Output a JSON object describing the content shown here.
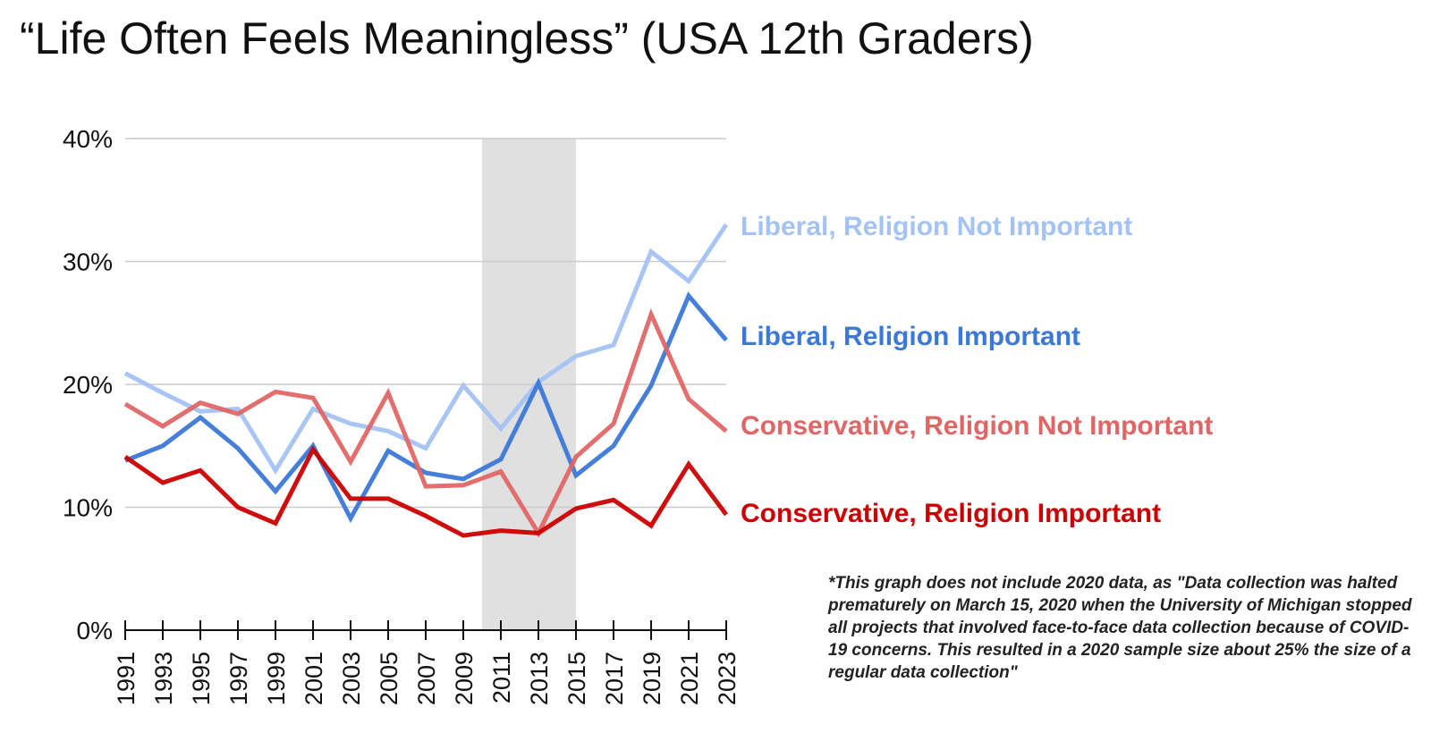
{
  "chart_data": {
    "type": "line",
    "title": "“Life Often Feels Meaningless” (USA 12th Graders)",
    "xlabel": "",
    "ylabel": "",
    "x": [
      "1991",
      "1993",
      "1995",
      "1997",
      "1999",
      "2001",
      "2003",
      "2005",
      "2007",
      "2009",
      "2011",
      "2013",
      "2015",
      "2017",
      "2019",
      "2021",
      "2023"
    ],
    "y_ticks": [
      "0%",
      "10%",
      "20%",
      "30%",
      "40%"
    ],
    "ylim": [
      0,
      40
    ],
    "grid": true,
    "legend": "right-end labels",
    "shaded_region": {
      "from": "2010",
      "to": "2015",
      "color": "#e0e0e0"
    },
    "series": [
      {
        "name": "Liberal, Religion Not Important",
        "color": "#a4c2f4",
        "values": [
          20.9,
          19.3,
          17.8,
          18.0,
          13.0,
          18.0,
          16.8,
          16.2,
          14.8,
          19.9,
          16.4,
          20.2,
          22.3,
          23.2,
          30.8,
          28.4,
          33.0
        ]
      },
      {
        "name": "Liberal, Religion Important",
        "color": "#3c78d8",
        "values": [
          13.8,
          15.0,
          17.3,
          14.8,
          11.3,
          15.0,
          9.1,
          14.6,
          12.8,
          12.3,
          13.9,
          20.1,
          12.6,
          15.0,
          19.9,
          27.2,
          23.6
        ]
      },
      {
        "name": "Conservative, Religion Not Important",
        "color": "#e06666",
        "values": [
          18.4,
          16.6,
          18.5,
          17.6,
          19.4,
          18.9,
          13.7,
          19.3,
          11.7,
          11.8,
          12.9,
          7.9,
          14.1,
          16.8,
          25.7,
          18.8,
          16.2
        ]
      },
      {
        "name": "Conservative, Religion Important",
        "color": "#cc0000",
        "values": [
          14.1,
          12.0,
          13.0,
          10.0,
          8.7,
          14.7,
          10.7,
          10.7,
          9.3,
          7.7,
          8.1,
          7.9,
          9.9,
          10.6,
          8.5,
          13.5,
          9.4
        ]
      }
    ],
    "annotation": "*This graph does not include 2020 data, as \"Data collection was halted prematurely on March 15, 2020 when the University of Michigan stopped all projects that involved face-to-face data collection because of COVID-19 concerns. This resulted in a 2020 sample size about 25% the size of a regular data collection\""
  }
}
